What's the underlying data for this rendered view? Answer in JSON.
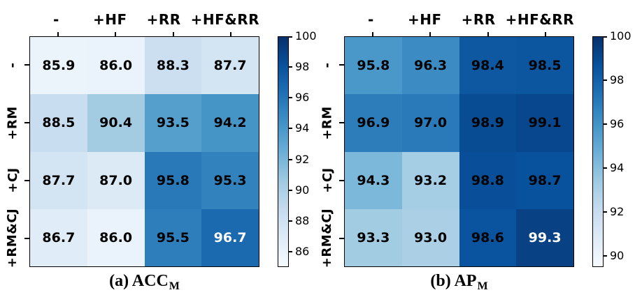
{
  "figure": {
    "type": "heatmap-pair",
    "background": "#ffffff",
    "frame_color": "#000000",
    "text_color": "#000000",
    "max_cell_text_color": "#ffffff",
    "colormap": {
      "name": "Blues",
      "anchors": [
        [
          0.0,
          "#f7fbff"
        ],
        [
          0.125,
          "#deebf7"
        ],
        [
          0.25,
          "#c6dbef"
        ],
        [
          0.375,
          "#9ecae1"
        ],
        [
          0.5,
          "#6baed6"
        ],
        [
          0.625,
          "#4292c6"
        ],
        [
          0.75,
          "#2171b5"
        ],
        [
          0.875,
          "#08519c"
        ],
        [
          1.0,
          "#08306b"
        ]
      ]
    }
  },
  "chart_data": [
    {
      "type": "heatmap",
      "title": "(a) ACC_M",
      "caption": {
        "prefix": "(a)",
        "main": "ACC",
        "sub": "M"
      },
      "x_categories": [
        "-",
        "+HF",
        "+RR",
        "+HF&RR"
      ],
      "y_categories": [
        "-",
        "+RM",
        "+CJ",
        "+RM&CJ"
      ],
      "values": [
        [
          85.9,
          86.0,
          88.3,
          87.7
        ],
        [
          88.5,
          90.4,
          93.5,
          94.2
        ],
        [
          87.7,
          87.0,
          95.8,
          95.3
        ],
        [
          86.7,
          86.0,
          95.5,
          96.7
        ]
      ],
      "value_decimals": 1,
      "vmin": 85,
      "vmax": 100,
      "colorbar_ticks": [
        86,
        88,
        90,
        92,
        94,
        96,
        98,
        100
      ],
      "colorbar_position": "right",
      "grid": false
    },
    {
      "type": "heatmap",
      "title": "(b) AP_M",
      "caption": {
        "prefix": "(b)",
        "main": "AP",
        "sub": "M"
      },
      "x_categories": [
        "-",
        "+HF",
        "+RR",
        "+HF&RR"
      ],
      "y_categories": [
        "-",
        "+RM",
        "+CJ",
        "+RM&CJ"
      ],
      "values": [
        [
          95.8,
          96.3,
          98.4,
          98.5
        ],
        [
          96.9,
          97.0,
          98.9,
          99.1
        ],
        [
          94.3,
          93.2,
          98.8,
          98.7
        ],
        [
          93.3,
          93.0,
          98.6,
          99.3
        ]
      ],
      "value_decimals": 1,
      "vmin": 89.5,
      "vmax": 100,
      "colorbar_ticks": [
        90,
        92,
        94,
        96,
        98,
        100
      ],
      "colorbar_position": "right",
      "grid": false
    }
  ]
}
